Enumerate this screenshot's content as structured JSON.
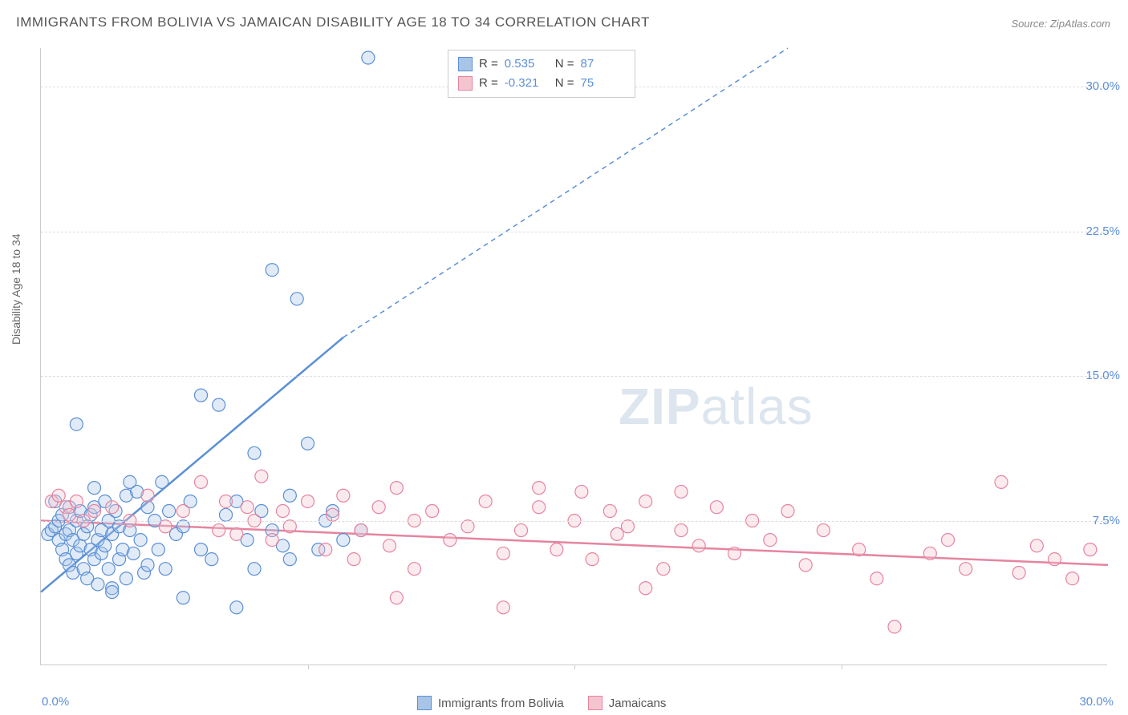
{
  "title": "IMMIGRANTS FROM BOLIVIA VS JAMAICAN DISABILITY AGE 18 TO 34 CORRELATION CHART",
  "source": "Source: ZipAtlas.com",
  "ylabel": "Disability Age 18 to 34",
  "watermark_a": "ZIP",
  "watermark_b": "atlas",
  "chart": {
    "type": "scatter",
    "xlim": [
      0,
      30
    ],
    "ylim": [
      0,
      32
    ],
    "xtick_labels": [
      "0.0%",
      "30.0%"
    ],
    "xtick_positions": [
      0,
      30
    ],
    "xtick_minor": [
      7.5,
      15,
      22.5
    ],
    "ytick_labels": [
      "7.5%",
      "15.0%",
      "22.5%",
      "30.0%"
    ],
    "ytick_positions": [
      7.5,
      15,
      22.5,
      30
    ],
    "grid_color": "#dddddd",
    "background_color": "#ffffff",
    "marker_radius": 8,
    "series": [
      {
        "name": "Immigrants from Bolivia",
        "color_fill": "#a8c5e8",
        "color_stroke": "#5b8fd6",
        "R": "0.535",
        "N": "87",
        "trend": {
          "x1": 0,
          "y1": 3.8,
          "x2": 8.5,
          "y2": 17.0,
          "x2_ext": 21,
          "y2_ext": 32
        },
        "points": [
          [
            0.2,
            6.8
          ],
          [
            0.3,
            7.0
          ],
          [
            0.4,
            7.2
          ],
          [
            0.5,
            6.5
          ],
          [
            0.5,
            7.5
          ],
          [
            0.6,
            6.0
          ],
          [
            0.6,
            7.8
          ],
          [
            0.7,
            5.5
          ],
          [
            0.7,
            6.8
          ],
          [
            0.8,
            7.0
          ],
          [
            0.8,
            5.2
          ],
          [
            0.9,
            6.5
          ],
          [
            0.9,
            4.8
          ],
          [
            1.0,
            7.5
          ],
          [
            1.0,
            5.8
          ],
          [
            1.1,
            6.2
          ],
          [
            1.1,
            8.0
          ],
          [
            1.2,
            5.0
          ],
          [
            1.2,
            6.8
          ],
          [
            1.3,
            7.2
          ],
          [
            1.3,
            4.5
          ],
          [
            1.4,
            6.0
          ],
          [
            1.4,
            7.8
          ],
          [
            1.5,
            5.5
          ],
          [
            1.5,
            8.2
          ],
          [
            1.6,
            6.5
          ],
          [
            1.6,
            4.2
          ],
          [
            1.7,
            7.0
          ],
          [
            1.7,
            5.8
          ],
          [
            1.8,
            6.2
          ],
          [
            1.8,
            8.5
          ],
          [
            1.9,
            5.0
          ],
          [
            1.9,
            7.5
          ],
          [
            2.0,
            6.8
          ],
          [
            2.0,
            4.0
          ],
          [
            2.1,
            8.0
          ],
          [
            2.2,
            5.5
          ],
          [
            2.2,
            7.2
          ],
          [
            2.3,
            6.0
          ],
          [
            2.4,
            8.8
          ],
          [
            2.4,
            4.5
          ],
          [
            2.5,
            7.0
          ],
          [
            2.6,
            5.8
          ],
          [
            2.7,
            9.0
          ],
          [
            2.8,
            6.5
          ],
          [
            2.9,
            4.8
          ],
          [
            3.0,
            8.2
          ],
          [
            3.0,
            5.2
          ],
          [
            3.2,
            7.5
          ],
          [
            3.3,
            6.0
          ],
          [
            3.4,
            9.5
          ],
          [
            3.5,
            5.0
          ],
          [
            3.6,
            8.0
          ],
          [
            3.8,
            6.8
          ],
          [
            4.0,
            7.2
          ],
          [
            4.0,
            3.5
          ],
          [
            4.2,
            8.5
          ],
          [
            4.5,
            14.0
          ],
          [
            4.5,
            6.0
          ],
          [
            4.8,
            5.5
          ],
          [
            5.0,
            13.5
          ],
          [
            5.2,
            7.8
          ],
          [
            5.5,
            3.0
          ],
          [
            5.5,
            8.5
          ],
          [
            5.8,
            6.5
          ],
          [
            6.0,
            11.0
          ],
          [
            6.0,
            5.0
          ],
          [
            6.2,
            8.0
          ],
          [
            6.5,
            7.0
          ],
          [
            6.5,
            20.5
          ],
          [
            6.8,
            6.2
          ],
          [
            7.0,
            8.8
          ],
          [
            7.0,
            5.5
          ],
          [
            7.2,
            19.0
          ],
          [
            7.5,
            11.5
          ],
          [
            7.8,
            6.0
          ],
          [
            8.0,
            7.5
          ],
          [
            8.2,
            8.0
          ],
          [
            8.5,
            6.5
          ],
          [
            9.0,
            7.0
          ],
          [
            9.2,
            31.5
          ],
          [
            1.0,
            12.5
          ],
          [
            1.5,
            9.2
          ],
          [
            2.0,
            3.8
          ],
          [
            2.5,
            9.5
          ],
          [
            0.4,
            8.5
          ],
          [
            0.8,
            8.2
          ]
        ]
      },
      {
        "name": "Jamaicans",
        "color_fill": "#f5c5cf",
        "color_stroke": "#e584a0",
        "R": "-0.321",
        "N": "75",
        "trend": {
          "x1": 0,
          "y1": 7.5,
          "x2": 30,
          "y2": 5.2
        },
        "points": [
          [
            0.3,
            8.5
          ],
          [
            0.5,
            8.8
          ],
          [
            0.7,
            8.2
          ],
          [
            0.8,
            7.8
          ],
          [
            1.0,
            8.5
          ],
          [
            1.2,
            7.5
          ],
          [
            1.5,
            8.0
          ],
          [
            2.0,
            8.2
          ],
          [
            2.5,
            7.5
          ],
          [
            3.0,
            8.8
          ],
          [
            3.5,
            7.2
          ],
          [
            4.0,
            8.0
          ],
          [
            4.5,
            9.5
          ],
          [
            5.0,
            7.0
          ],
          [
            5.2,
            8.5
          ],
          [
            5.5,
            6.8
          ],
          [
            5.8,
            8.2
          ],
          [
            6.0,
            7.5
          ],
          [
            6.2,
            9.8
          ],
          [
            6.5,
            6.5
          ],
          [
            6.8,
            8.0
          ],
          [
            7.0,
            7.2
          ],
          [
            7.5,
            8.5
          ],
          [
            8.0,
            6.0
          ],
          [
            8.2,
            7.8
          ],
          [
            8.5,
            8.8
          ],
          [
            8.8,
            5.5
          ],
          [
            9.0,
            7.0
          ],
          [
            9.5,
            8.2
          ],
          [
            9.8,
            6.2
          ],
          [
            10.0,
            9.2
          ],
          [
            10.5,
            5.0
          ],
          [
            10.5,
            7.5
          ],
          [
            11.0,
            8.0
          ],
          [
            11.5,
            6.5
          ],
          [
            12.0,
            7.2
          ],
          [
            12.5,
            8.5
          ],
          [
            13.0,
            5.8
          ],
          [
            13.5,
            7.0
          ],
          [
            14.0,
            8.2
          ],
          [
            14.0,
            9.2
          ],
          [
            14.5,
            6.0
          ],
          [
            15.0,
            7.5
          ],
          [
            15.2,
            9.0
          ],
          [
            15.5,
            5.5
          ],
          [
            16.0,
            8.0
          ],
          [
            16.2,
            6.8
          ],
          [
            16.5,
            7.2
          ],
          [
            17.0,
            8.5
          ],
          [
            17.5,
            5.0
          ],
          [
            18.0,
            9.0
          ],
          [
            18.0,
            7.0
          ],
          [
            18.5,
            6.2
          ],
          [
            19.0,
            8.2
          ],
          [
            19.5,
            5.8
          ],
          [
            20.0,
            7.5
          ],
          [
            20.5,
            6.5
          ],
          [
            21.0,
            8.0
          ],
          [
            21.5,
            5.2
          ],
          [
            22.0,
            7.0
          ],
          [
            23.0,
            6.0
          ],
          [
            23.5,
            4.5
          ],
          [
            24.0,
            2.0
          ],
          [
            25.0,
            5.8
          ],
          [
            25.5,
            6.5
          ],
          [
            26.0,
            5.0
          ],
          [
            27.0,
            9.5
          ],
          [
            27.5,
            4.8
          ],
          [
            28.0,
            6.2
          ],
          [
            28.5,
            5.5
          ],
          [
            29.0,
            4.5
          ],
          [
            29.5,
            6.0
          ],
          [
            10.0,
            3.5
          ],
          [
            13.0,
            3.0
          ],
          [
            17.0,
            4.0
          ]
        ]
      }
    ]
  },
  "legend_bottom": [
    {
      "label": "Immigrants from Bolivia",
      "fill": "#a8c5e8",
      "stroke": "#5b8fd6"
    },
    {
      "label": "Jamaicans",
      "fill": "#f5c5cf",
      "stroke": "#e584a0"
    }
  ]
}
